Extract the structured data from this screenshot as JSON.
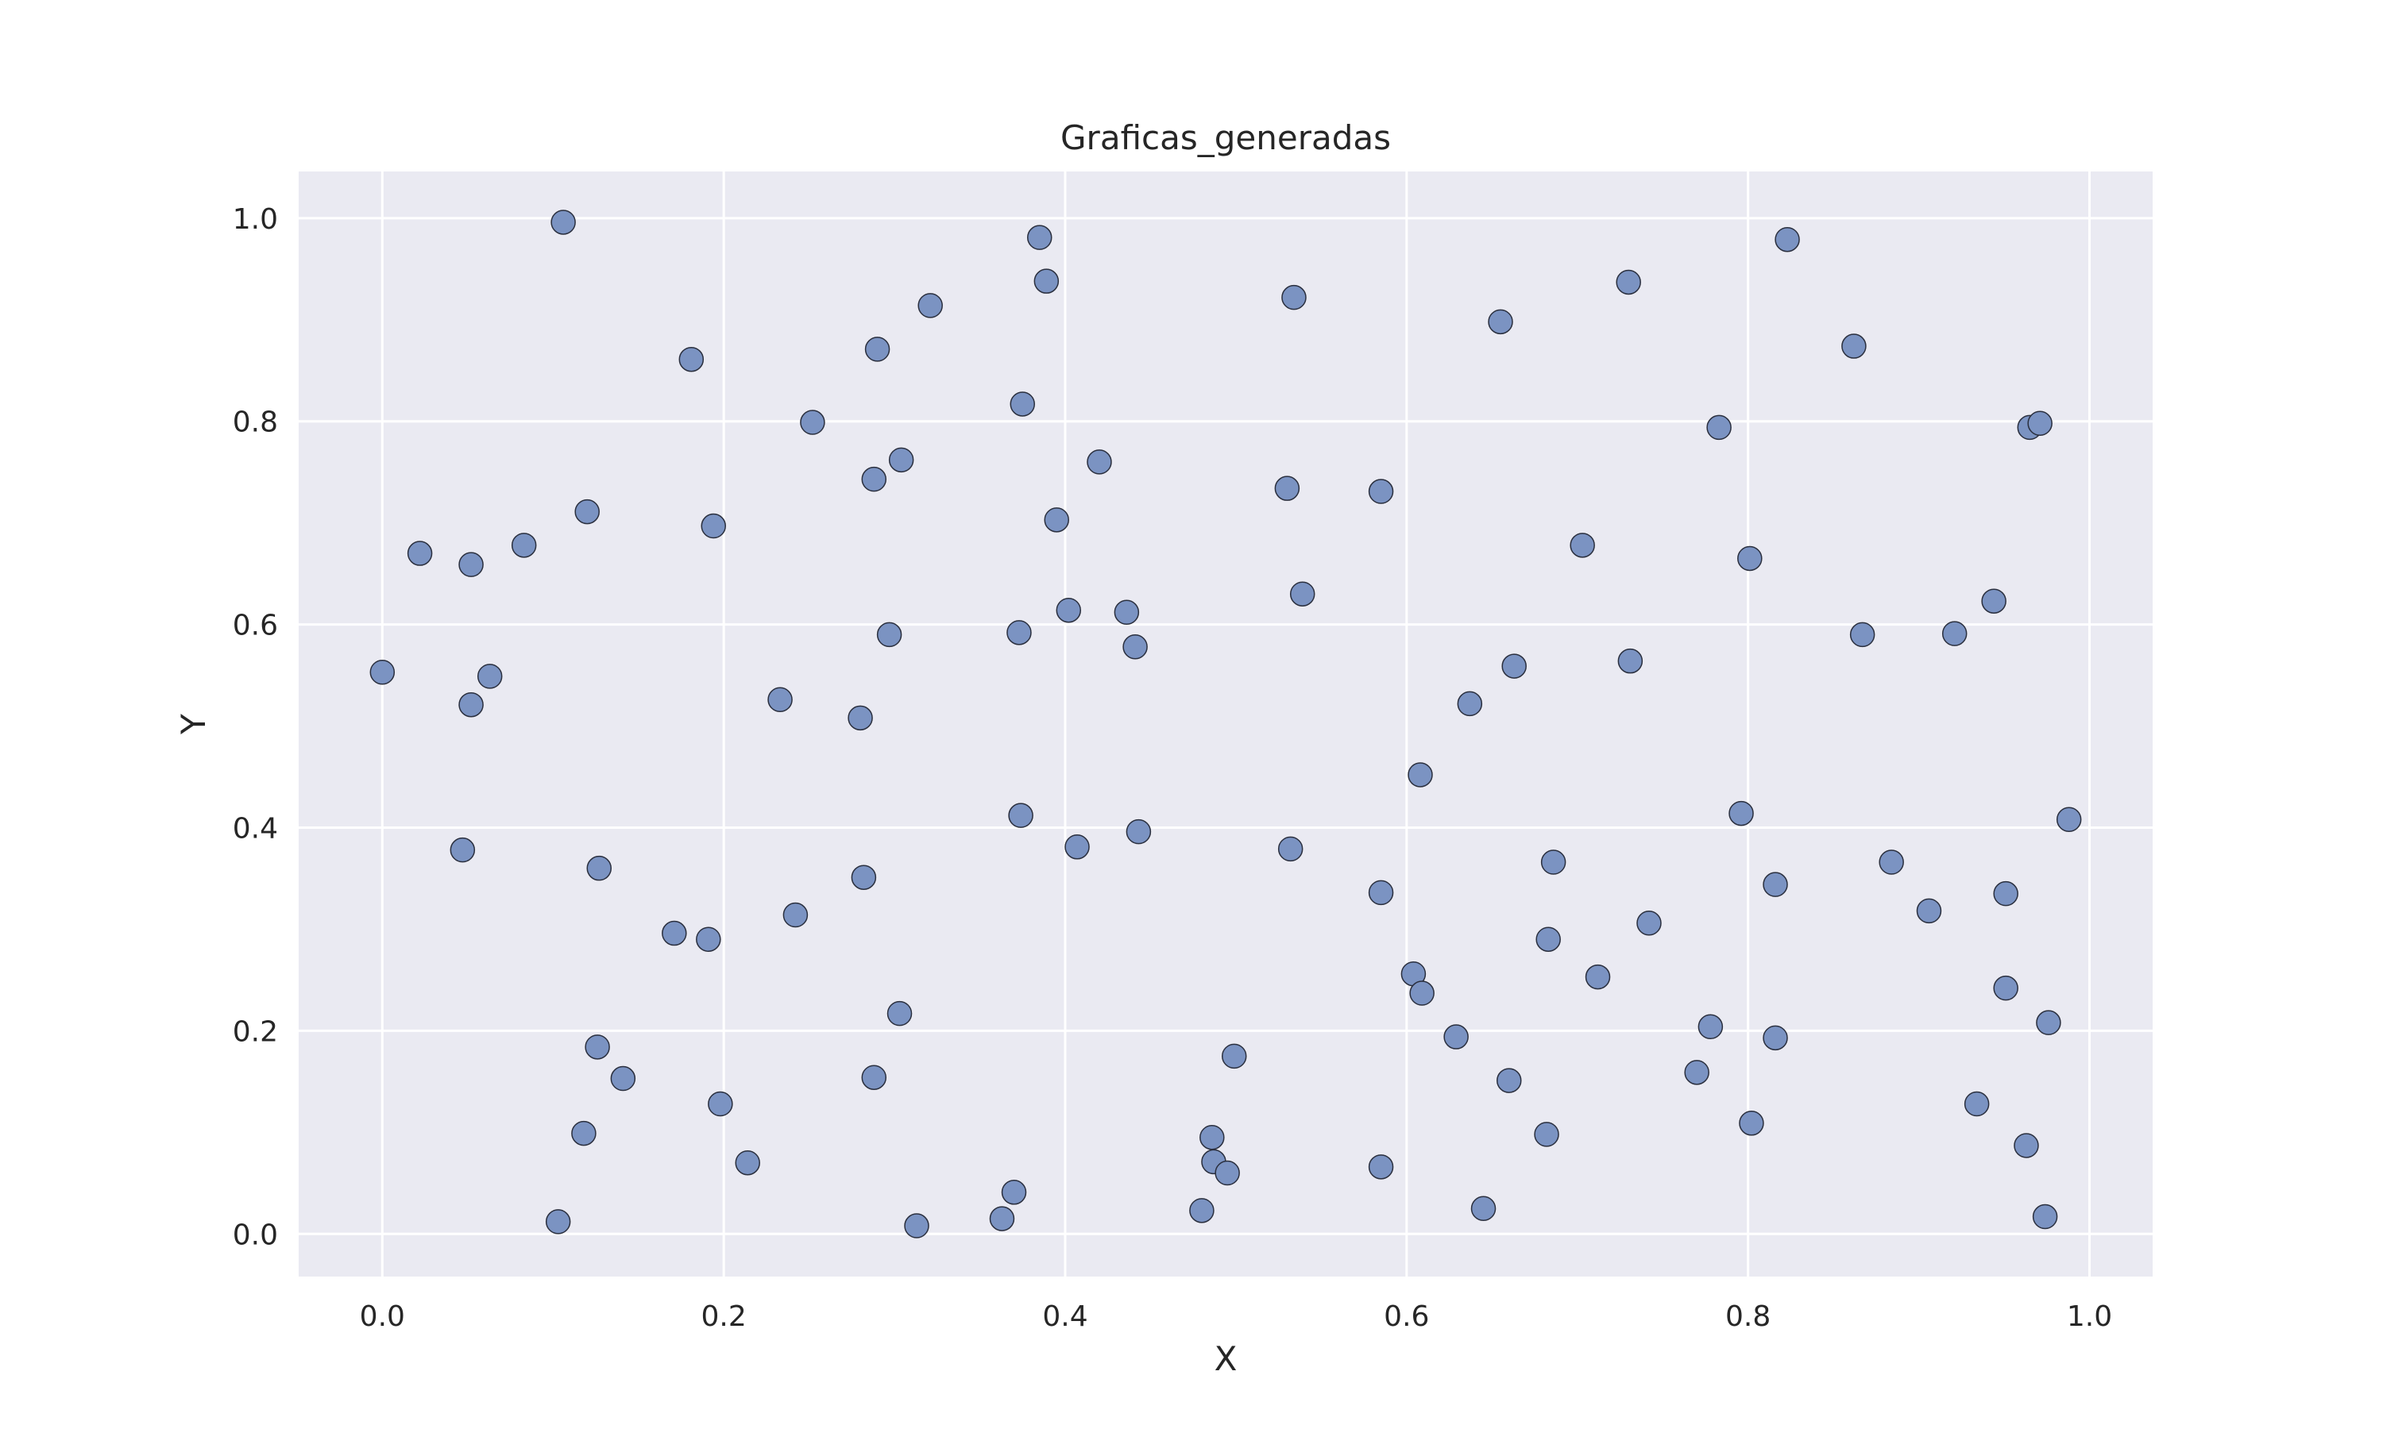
{
  "chart_data": {
    "type": "scatter",
    "title": "Graficas_generadas",
    "xlabel": "X",
    "ylabel": "Y",
    "xlim": [
      -0.049,
      1.037
    ],
    "ylim": [
      -0.042,
      1.046
    ],
    "xticks": [
      0.0,
      0.2,
      0.4,
      0.6,
      0.8,
      1.0
    ],
    "xtick_labels": [
      "0.0",
      "0.2",
      "0.4",
      "0.6",
      "0.8",
      "1.0"
    ],
    "yticks": [
      0.0,
      0.2,
      0.4,
      0.6,
      0.8,
      1.0
    ],
    "ytick_labels": [
      "0.0",
      "0.2",
      "0.4",
      "0.6",
      "0.8",
      "1.0"
    ],
    "grid": true,
    "colors": {
      "point": "#7b93c2",
      "background": "#eaeaf2",
      "grid": "#ffffff"
    },
    "points": [
      [
        0.106,
        0.996
      ],
      [
        0.181,
        0.861
      ],
      [
        0.022,
        0.67
      ],
      [
        0.052,
        0.659
      ],
      [
        0.083,
        0.678
      ],
      [
        0.12,
        0.711
      ],
      [
        0.194,
        0.697
      ],
      [
        0.0,
        0.553
      ],
      [
        0.052,
        0.521
      ],
      [
        0.063,
        0.549
      ],
      [
        0.047,
        0.378
      ],
      [
        0.127,
        0.36
      ],
      [
        0.171,
        0.296
      ],
      [
        0.191,
        0.29
      ],
      [
        0.126,
        0.184
      ],
      [
        0.141,
        0.153
      ],
      [
        0.118,
        0.099
      ],
      [
        0.198,
        0.128
      ],
      [
        0.214,
        0.07
      ],
      [
        0.103,
        0.012
      ],
      [
        0.252,
        0.799
      ],
      [
        0.29,
        0.871
      ],
      [
        0.321,
        0.914
      ],
      [
        0.385,
        0.981
      ],
      [
        0.389,
        0.938
      ],
      [
        0.375,
        0.817
      ],
      [
        0.288,
        0.743
      ],
      [
        0.304,
        0.762
      ],
      [
        0.42,
        0.76
      ],
      [
        0.395,
        0.703
      ],
      [
        0.402,
        0.614
      ],
      [
        0.436,
        0.612
      ],
      [
        0.297,
        0.59
      ],
      [
        0.373,
        0.592
      ],
      [
        0.441,
        0.578
      ],
      [
        0.233,
        0.526
      ],
      [
        0.28,
        0.508
      ],
      [
        0.374,
        0.412
      ],
      [
        0.407,
        0.381
      ],
      [
        0.443,
        0.396
      ],
      [
        0.282,
        0.351
      ],
      [
        0.242,
        0.314
      ],
      [
        0.303,
        0.217
      ],
      [
        0.288,
        0.154
      ],
      [
        0.37,
        0.041
      ],
      [
        0.363,
        0.015
      ],
      [
        0.313,
        0.008
      ],
      [
        0.534,
        0.922
      ],
      [
        0.53,
        0.734
      ],
      [
        0.585,
        0.731
      ],
      [
        0.539,
        0.63
      ],
      [
        0.532,
        0.379
      ],
      [
        0.585,
        0.336
      ],
      [
        0.499,
        0.175
      ],
      [
        0.486,
        0.095
      ],
      [
        0.487,
        0.071
      ],
      [
        0.495,
        0.06
      ],
      [
        0.48,
        0.023
      ],
      [
        0.585,
        0.066
      ],
      [
        0.608,
        0.452
      ],
      [
        0.604,
        0.256
      ],
      [
        0.609,
        0.237
      ],
      [
        0.629,
        0.194
      ],
      [
        0.645,
        0.025
      ],
      [
        0.655,
        0.898
      ],
      [
        0.637,
        0.522
      ],
      [
        0.663,
        0.559
      ],
      [
        0.686,
        0.366
      ],
      [
        0.683,
        0.29
      ],
      [
        0.66,
        0.151
      ],
      [
        0.682,
        0.098
      ],
      [
        0.73,
        0.937
      ],
      [
        0.703,
        0.678
      ],
      [
        0.731,
        0.564
      ],
      [
        0.712,
        0.253
      ],
      [
        0.742,
        0.306
      ],
      [
        0.77,
        0.159
      ],
      [
        0.778,
        0.204
      ],
      [
        0.783,
        0.794
      ],
      [
        0.823,
        0.979
      ],
      [
        0.801,
        0.665
      ],
      [
        0.796,
        0.414
      ],
      [
        0.816,
        0.344
      ],
      [
        0.816,
        0.193
      ],
      [
        0.802,
        0.109
      ],
      [
        0.862,
        0.874
      ],
      [
        0.867,
        0.59
      ],
      [
        0.884,
        0.366
      ],
      [
        0.906,
        0.318
      ],
      [
        0.921,
        0.591
      ],
      [
        0.944,
        0.623
      ],
      [
        0.965,
        0.794
      ],
      [
        0.971,
        0.798
      ],
      [
        0.988,
        0.408
      ],
      [
        0.951,
        0.335
      ],
      [
        0.951,
        0.242
      ],
      [
        0.976,
        0.208
      ],
      [
        0.934,
        0.128
      ],
      [
        0.963,
        0.087
      ],
      [
        0.974,
        0.017
      ]
    ]
  }
}
